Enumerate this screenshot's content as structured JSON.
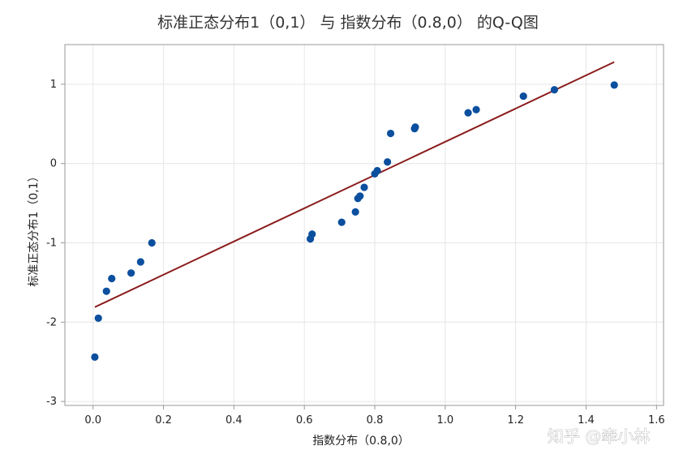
{
  "chart_data": {
    "type": "scatter",
    "title": "标准正态分布1（0,1） 与 指数分布（0.8,0） 的Q-Q图",
    "xlabel": "指数分布（0.8,0）",
    "ylabel": "标准正态分布1（0,1）",
    "xlim": [
      -0.08,
      1.62
    ],
    "ylim": [
      -3.05,
      1.5
    ],
    "xticks": [
      "0.0",
      "0.2",
      "0.4",
      "0.6",
      "0.8",
      "1.0",
      "1.2",
      "1.4",
      "1.6"
    ],
    "yticks": [
      "-3",
      "-2",
      "-1",
      "0",
      "1"
    ],
    "grid": true,
    "series": [
      {
        "values": [
          [
            0.005,
            -2.44
          ],
          [
            0.015,
            -1.95
          ],
          [
            0.038,
            -1.61
          ],
          [
            0.053,
            -1.45
          ],
          [
            0.108,
            -1.38
          ],
          [
            0.135,
            -1.24
          ],
          [
            0.167,
            -1.0
          ],
          [
            0.617,
            -0.95
          ],
          [
            0.622,
            -0.89
          ],
          [
            0.706,
            -0.74
          ],
          [
            0.745,
            -0.61
          ],
          [
            0.752,
            -0.44
          ],
          [
            0.758,
            -0.41
          ],
          [
            0.77,
            -0.3
          ],
          [
            0.8,
            -0.13
          ],
          [
            0.807,
            -0.09
          ],
          [
            0.836,
            0.02
          ],
          [
            0.845,
            0.38
          ],
          [
            0.913,
            0.44
          ],
          [
            0.915,
            0.46
          ],
          [
            1.065,
            0.64
          ],
          [
            1.088,
            0.68
          ],
          [
            1.222,
            0.85
          ],
          [
            1.31,
            0.93
          ],
          [
            1.48,
            0.99
          ]
        ]
      }
    ],
    "fit_line": {
      "x": [
        0.005,
        1.48
      ],
      "y": [
        -1.81,
        1.28
      ]
    },
    "colors": {
      "points": "#0b4f9e",
      "fit_line": "#8b1c1c",
      "grid": "#e6e6e6",
      "axis": "#999999"
    }
  },
  "watermark": "知乎 @牵小林"
}
